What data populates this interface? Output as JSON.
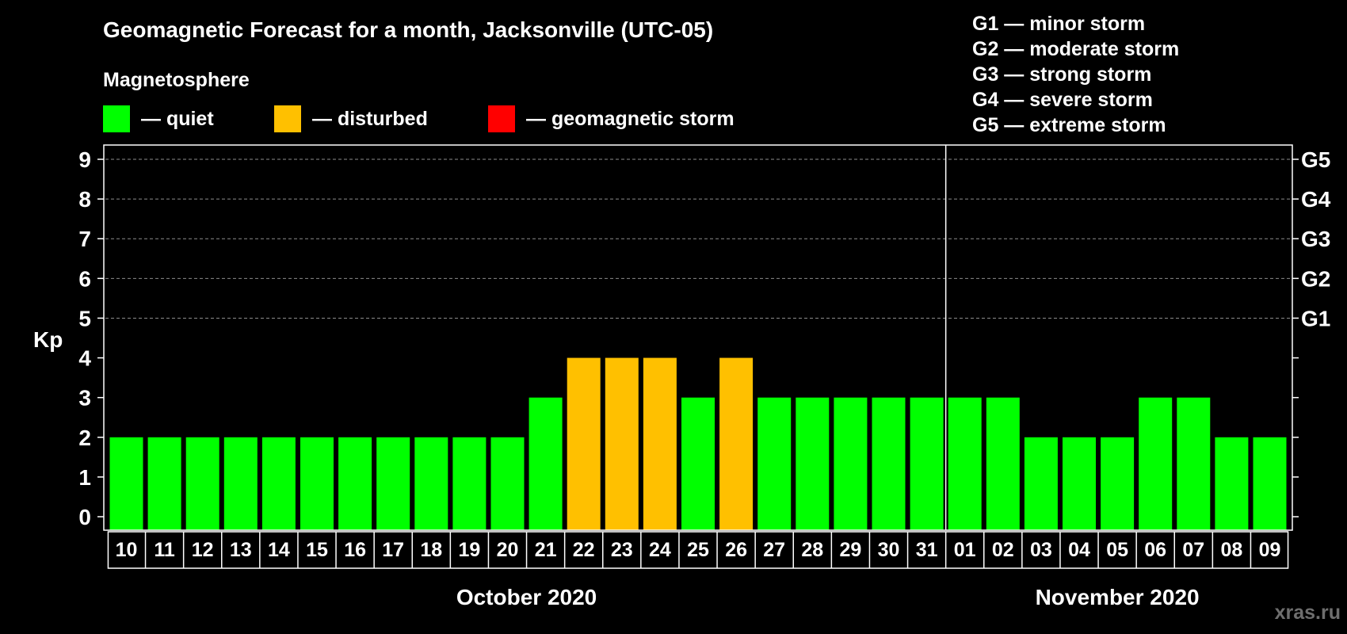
{
  "chart_data": {
    "type": "bar",
    "title": "Geomagnetic Forecast for a month, Jacksonville (UTC-05)",
    "ylabel": "Kp",
    "ylim": [
      0,
      9
    ],
    "y_ticks": [
      "0",
      "1",
      "2",
      "3",
      "4",
      "5",
      "6",
      "7",
      "8",
      "9"
    ],
    "right_axis_labels": [
      {
        "kp": 5,
        "label": "G1"
      },
      {
        "kp": 6,
        "label": "G2"
      },
      {
        "kp": 7,
        "label": "G3"
      },
      {
        "kp": 8,
        "label": "G4"
      },
      {
        "kp": 9,
        "label": "G5"
      }
    ],
    "legend": {
      "heading": "Magnetosphere",
      "items": [
        {
          "label": "— quiet",
          "color": "#00ff00"
        },
        {
          "label": "— disturbed",
          "color": "#ffc000"
        },
        {
          "label": "— geomagnetic storm",
          "color": "#ff0000"
        }
      ]
    },
    "storm_scale": [
      "G1 — minor storm",
      "G2 — moderate storm",
      "G3 — strong storm",
      "G4 — severe storm",
      "G5 — extreme storm"
    ],
    "months": [
      {
        "label": "October 2020",
        "first_index": 0,
        "last_index": 21
      },
      {
        "label": "November 2020",
        "first_index": 22,
        "last_index": 30
      }
    ],
    "categories": [
      "10",
      "11",
      "12",
      "13",
      "14",
      "15",
      "16",
      "17",
      "18",
      "19",
      "20",
      "21",
      "22",
      "23",
      "24",
      "25",
      "26",
      "27",
      "28",
      "29",
      "30",
      "31",
      "01",
      "02",
      "03",
      "04",
      "05",
      "06",
      "07",
      "08",
      "09"
    ],
    "values": [
      2,
      2,
      2,
      2,
      2,
      2,
      2,
      2,
      2,
      2,
      2,
      3,
      4,
      4,
      4,
      3,
      4,
      3,
      3,
      3,
      3,
      3,
      3,
      3,
      2,
      2,
      2,
      3,
      3,
      2,
      2
    ],
    "colors": {
      "quiet": "#00ff00",
      "disturbed": "#ffc000",
      "storm": "#ff0000",
      "grid": "#8c8c8c",
      "axis": "#ffffff"
    }
  },
  "watermark": "xras.ru"
}
